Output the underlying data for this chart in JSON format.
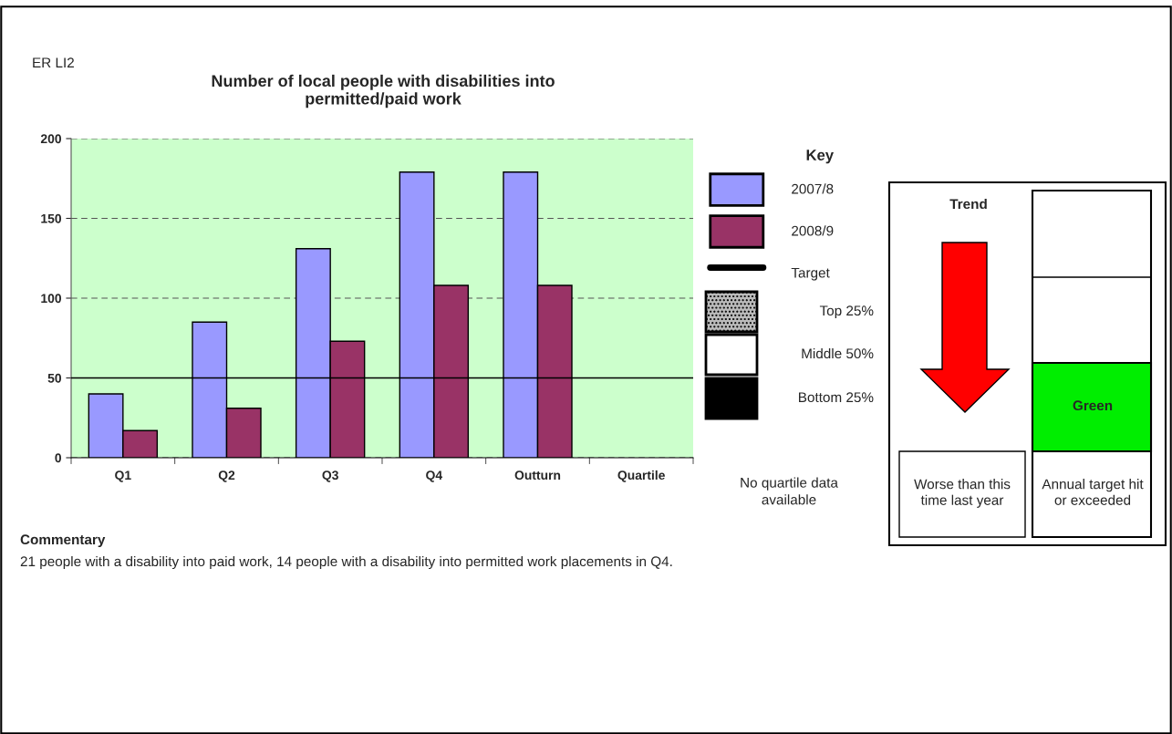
{
  "chart_data": {
    "type": "bar",
    "title": "Number of local people with disabilities into permitted/paid work",
    "categories": [
      "Q1",
      "Q2",
      "Q3",
      "Q4",
      "Outturn",
      "Quartile"
    ],
    "series": [
      {
        "name": "2007/8",
        "color": "#9999ff",
        "values": [
          40,
          85,
          131,
          179,
          179,
          null
        ]
      },
      {
        "name": "2008/9",
        "color": "#993366",
        "values": [
          17,
          31,
          73,
          108,
          108,
          null
        ]
      }
    ],
    "ylim": [
      0,
      200
    ],
    "yticks": [
      0,
      50,
      100,
      150,
      200
    ],
    "grid": "y",
    "legend": "right",
    "legend_title": "Key",
    "ref_lines": [
      {
        "axis": "y",
        "value": 50,
        "label": "Target",
        "color": "#000000",
        "line_style": "solid"
      }
    ],
    "annotations": [
      "ER LI2",
      "Top 25%",
      "Middle 50%",
      "Bottom 25%",
      "No quartile data available",
      "Trend",
      "Worse than this time last year",
      "Green",
      "Annual target hit or exceeded",
      "Commentary",
      "21 people with a disability into paid work, 14 people with a disability into permitted work placements in Q4."
    ]
  }
}
